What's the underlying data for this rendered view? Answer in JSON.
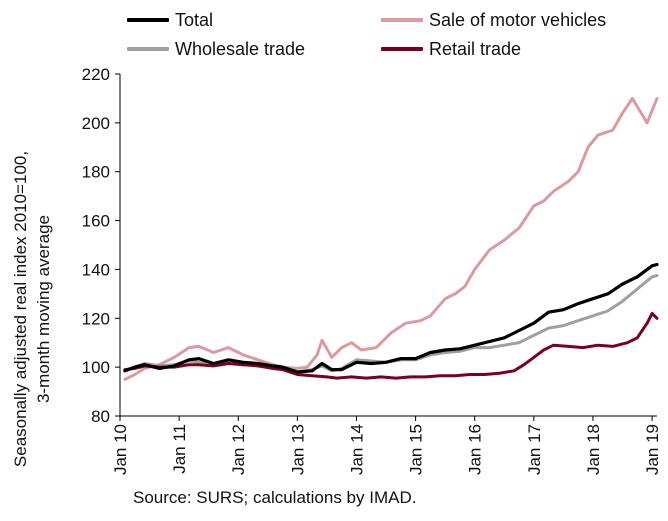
{
  "chart_data": {
    "type": "line",
    "ylabel_lines": [
      "Seasonally adjusted real index 2010=100,",
      "3-month moving average"
    ],
    "source": "Source: SURS; calculations by IMAD.",
    "ylim": [
      80,
      220
    ],
    "yticks": [
      80,
      100,
      120,
      140,
      160,
      180,
      200,
      220
    ],
    "xlim": [
      "2010-01",
      "2019-02"
    ],
    "xticks": [
      "Jan 10",
      "Jan 11",
      "Jan 12",
      "Jan 13",
      "Jan 14",
      "Jan 15",
      "Jan 16",
      "Jan 17",
      "Jan 18",
      "Jan 19"
    ],
    "grid": false,
    "legend": "top",
    "series": [
      {
        "name": "Total",
        "color": "#000000",
        "points": [
          [
            "2010-02",
            98.5
          ],
          [
            "2010-04",
            100
          ],
          [
            "2010-06",
            101
          ],
          [
            "2010-09",
            99.5
          ],
          [
            "2010-12",
            100.5
          ],
          [
            "2011-03",
            103
          ],
          [
            "2011-05",
            103.5
          ],
          [
            "2011-08",
            101.5
          ],
          [
            "2011-11",
            103
          ],
          [
            "2012-02",
            102
          ],
          [
            "2012-05",
            101.5
          ],
          [
            "2012-08",
            100.5
          ],
          [
            "2012-10",
            100
          ],
          [
            "2013-01",
            98
          ],
          [
            "2013-04",
            98.5
          ],
          [
            "2013-06",
            101.5
          ],
          [
            "2013-08",
            99
          ],
          [
            "2013-10",
            99
          ],
          [
            "2014-01",
            102
          ],
          [
            "2014-04",
            101.5
          ],
          [
            "2014-07",
            102
          ],
          [
            "2014-10",
            103.5
          ],
          [
            "2015-01",
            103.5
          ],
          [
            "2015-04",
            106
          ],
          [
            "2015-07",
            107
          ],
          [
            "2015-10",
            107.5
          ],
          [
            "2016-01",
            109
          ],
          [
            "2016-04",
            110.5
          ],
          [
            "2016-07",
            112
          ],
          [
            "2016-10",
            115
          ],
          [
            "2017-01",
            118
          ],
          [
            "2017-04",
            122.5
          ],
          [
            "2017-07",
            123.5
          ],
          [
            "2017-10",
            126
          ],
          [
            "2018-01",
            128
          ],
          [
            "2018-04",
            130
          ],
          [
            "2018-07",
            134
          ],
          [
            "2018-10",
            137
          ],
          [
            "2019-01",
            141.5
          ],
          [
            "2019-02",
            142
          ]
        ]
      },
      {
        "name": "Sale of motor vehicles",
        "color": "#dc9a9e",
        "points": [
          [
            "2010-02",
            95
          ],
          [
            "2010-04",
            97
          ],
          [
            "2010-06",
            99.5
          ],
          [
            "2010-09",
            101
          ],
          [
            "2010-12",
            104
          ],
          [
            "2011-03",
            108
          ],
          [
            "2011-05",
            108.5
          ],
          [
            "2011-08",
            106
          ],
          [
            "2011-11",
            108
          ],
          [
            "2012-02",
            105
          ],
          [
            "2012-05",
            103
          ],
          [
            "2012-08",
            101
          ],
          [
            "2012-10",
            100
          ],
          [
            "2013-01",
            99.5
          ],
          [
            "2013-03",
            100
          ],
          [
            "2013-05",
            105
          ],
          [
            "2013-06",
            111
          ],
          [
            "2013-08",
            104
          ],
          [
            "2013-10",
            108
          ],
          [
            "2013-12",
            110
          ],
          [
            "2014-02",
            107
          ],
          [
            "2014-05",
            108
          ],
          [
            "2014-08",
            114
          ],
          [
            "2014-11",
            118
          ],
          [
            "2015-02",
            119
          ],
          [
            "2015-04",
            121
          ],
          [
            "2015-07",
            128
          ],
          [
            "2015-09",
            130
          ],
          [
            "2015-11",
            133
          ],
          [
            "2016-01",
            140
          ],
          [
            "2016-04",
            148
          ],
          [
            "2016-07",
            152
          ],
          [
            "2016-10",
            157
          ],
          [
            "2017-01",
            166
          ],
          [
            "2017-03",
            168
          ],
          [
            "2017-05",
            172
          ],
          [
            "2017-08",
            176
          ],
          [
            "2017-10",
            180
          ],
          [
            "2017-12",
            190
          ],
          [
            "2018-02",
            195
          ],
          [
            "2018-05",
            197
          ],
          [
            "2018-07",
            204
          ],
          [
            "2018-09",
            210
          ],
          [
            "2018-12",
            200
          ],
          [
            "2019-02",
            210
          ]
        ]
      },
      {
        "name": "Wholesale trade",
        "color": "#a0a0a0",
        "points": [
          [
            "2010-02",
            98.5
          ],
          [
            "2010-04",
            100
          ],
          [
            "2010-06",
            101.5
          ],
          [
            "2010-09",
            100.5
          ],
          [
            "2010-12",
            101
          ],
          [
            "2011-03",
            102.5
          ],
          [
            "2011-05",
            102
          ],
          [
            "2011-08",
            101
          ],
          [
            "2011-11",
            102.5
          ],
          [
            "2012-02",
            101.5
          ],
          [
            "2012-05",
            101
          ],
          [
            "2012-08",
            100.5
          ],
          [
            "2012-10",
            100
          ],
          [
            "2013-01",
            98
          ],
          [
            "2013-04",
            99
          ],
          [
            "2013-06",
            100.5
          ],
          [
            "2013-08",
            98.5
          ],
          [
            "2013-10",
            99.5
          ],
          [
            "2014-01",
            103
          ],
          [
            "2014-04",
            102.5
          ],
          [
            "2014-07",
            102
          ],
          [
            "2014-10",
            103
          ],
          [
            "2015-01",
            103
          ],
          [
            "2015-04",
            105
          ],
          [
            "2015-07",
            106
          ],
          [
            "2015-10",
            106.5
          ],
          [
            "2016-01",
            108
          ],
          [
            "2016-04",
            108
          ],
          [
            "2016-07",
            109
          ],
          [
            "2016-10",
            110
          ],
          [
            "2017-01",
            113
          ],
          [
            "2017-04",
            116
          ],
          [
            "2017-07",
            117
          ],
          [
            "2017-10",
            119
          ],
          [
            "2018-01",
            121
          ],
          [
            "2018-04",
            123
          ],
          [
            "2018-07",
            127
          ],
          [
            "2018-10",
            132
          ],
          [
            "2019-01",
            137
          ],
          [
            "2019-02",
            137.5
          ]
        ]
      },
      {
        "name": "Retail trade",
        "color": "#7a0022",
        "points": [
          [
            "2010-02",
            99
          ],
          [
            "2010-04",
            99.5
          ],
          [
            "2010-06",
            100.5
          ],
          [
            "2010-09",
            100
          ],
          [
            "2010-12",
            100
          ],
          [
            "2011-03",
            101
          ],
          [
            "2011-05",
            101
          ],
          [
            "2011-08",
            100.5
          ],
          [
            "2011-11",
            101.5
          ],
          [
            "2012-02",
            101
          ],
          [
            "2012-05",
            100.5
          ],
          [
            "2012-08",
            99.5
          ],
          [
            "2012-10",
            99
          ],
          [
            "2013-01",
            97
          ],
          [
            "2013-04",
            96.5
          ],
          [
            "2013-07",
            96
          ],
          [
            "2013-09",
            95.5
          ],
          [
            "2013-12",
            96
          ],
          [
            "2014-03",
            95.5
          ],
          [
            "2014-06",
            96
          ],
          [
            "2014-09",
            95.5
          ],
          [
            "2014-12",
            96
          ],
          [
            "2015-03",
            96
          ],
          [
            "2015-06",
            96.5
          ],
          [
            "2015-09",
            96.5
          ],
          [
            "2015-12",
            97
          ],
          [
            "2016-03",
            97
          ],
          [
            "2016-06",
            97.5
          ],
          [
            "2016-09",
            98.5
          ],
          [
            "2016-11",
            101
          ],
          [
            "2017-01",
            104
          ],
          [
            "2017-03",
            107
          ],
          [
            "2017-05",
            109
          ],
          [
            "2017-08",
            108.5
          ],
          [
            "2017-11",
            108
          ],
          [
            "2018-02",
            109
          ],
          [
            "2018-05",
            108.5
          ],
          [
            "2018-08",
            110
          ],
          [
            "2018-10",
            112
          ],
          [
            "2018-12",
            118
          ],
          [
            "2019-01",
            122
          ],
          [
            "2019-02",
            120
          ]
        ]
      }
    ]
  }
}
